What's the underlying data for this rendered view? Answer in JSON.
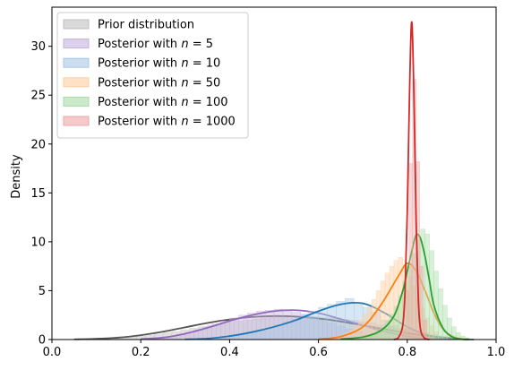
{
  "chart_data": {
    "type": "area",
    "title": "",
    "xlabel": "",
    "ylabel": "Density",
    "xlim": [
      0.0,
      1.0
    ],
    "ylim": [
      0,
      34
    ],
    "x_ticks": [
      "0.0",
      "0.2",
      "0.4",
      "0.6",
      "0.8",
      "1.0"
    ],
    "y_ticks": [
      "0",
      "5",
      "10",
      "15",
      "20",
      "25",
      "30"
    ],
    "grid": false,
    "legend_position": "top-left",
    "series": [
      {
        "legend": {
          "prefix": "Prior distribution",
          "var": "",
          "value": ""
        },
        "color": "#555555",
        "fill": "#bfbfbf",
        "x": [
          0.05,
          0.1,
          0.15,
          0.2,
          0.25,
          0.3,
          0.35,
          0.4,
          0.45,
          0.5,
          0.55,
          0.6,
          0.65,
          0.7,
          0.75,
          0.8,
          0.85,
          0.9,
          0.94
        ],
        "values": [
          0.02,
          0.08,
          0.2,
          0.45,
          0.8,
          1.25,
          1.7,
          2.05,
          2.3,
          2.4,
          2.35,
          2.15,
          1.85,
          1.45,
          1.05,
          0.65,
          0.35,
          0.12,
          0.03
        ],
        "hist": {
          "start": 0.05,
          "width": 0.02,
          "values": [
            0.02,
            0.03,
            0.06,
            0.08,
            0.12,
            0.18,
            0.24,
            0.33,
            0.45,
            0.56,
            0.7,
            0.82,
            1.0,
            1.15,
            1.3,
            1.48,
            1.62,
            1.75,
            1.9,
            2.0,
            2.1,
            2.2,
            2.25,
            2.3,
            2.35,
            2.4,
            2.35,
            2.3,
            2.25,
            2.2,
            2.05,
            1.95,
            1.8,
            1.7,
            1.5,
            1.35,
            1.15,
            1.0,
            0.85,
            0.7,
            0.5,
            0.35,
            0.2,
            0.12,
            0.05
          ]
        }
      },
      {
        "legend": {
          "prefix": "Posterior with ",
          "var": "n",
          "value": " = 5"
        },
        "color": "#9467bd",
        "fill": "#c5b3de",
        "x": [
          0.2,
          0.25,
          0.3,
          0.35,
          0.4,
          0.45,
          0.5,
          0.55,
          0.6,
          0.65,
          0.7,
          0.75,
          0.8,
          0.85,
          0.9
        ],
        "values": [
          0.05,
          0.2,
          0.6,
          1.2,
          1.9,
          2.5,
          2.9,
          3.0,
          2.7,
          2.1,
          1.45,
          0.8,
          0.35,
          0.1,
          0.02
        ],
        "hist": {
          "start": 0.2,
          "width": 0.02,
          "values": [
            0.05,
            0.1,
            0.2,
            0.35,
            0.55,
            0.75,
            1.0,
            1.3,
            1.6,
            1.9,
            2.2,
            2.5,
            2.7,
            2.9,
            3.0,
            3.1,
            3.0,
            2.8,
            2.6,
            2.3,
            2.0,
            1.7,
            1.4,
            1.1,
            0.8,
            0.55,
            0.35,
            0.2,
            0.1,
            0.05,
            0.02,
            0.01,
            0.01,
            0.0,
            0.0
          ]
        }
      },
      {
        "legend": {
          "prefix": "Posterior with ",
          "var": "n",
          "value": " = 10"
        },
        "color": "#1f77b4",
        "fill": "#a6c8e4",
        "x": [
          0.3,
          0.35,
          0.4,
          0.45,
          0.5,
          0.55,
          0.6,
          0.65,
          0.7,
          0.75,
          0.8,
          0.85,
          0.9,
          0.95
        ],
        "values": [
          0.02,
          0.1,
          0.35,
          0.75,
          1.3,
          2.0,
          2.9,
          3.6,
          3.7,
          2.7,
          1.3,
          0.4,
          0.08,
          0.0
        ],
        "hist": {
          "start": 0.3,
          "width": 0.02,
          "values": [
            0.02,
            0.05,
            0.1,
            0.2,
            0.3,
            0.45,
            0.6,
            0.8,
            1.0,
            1.2,
            1.5,
            1.8,
            2.1,
            2.5,
            2.9,
            3.3,
            3.6,
            3.9,
            4.2,
            3.8,
            3.3,
            2.8,
            2.0,
            1.4,
            0.9,
            0.5,
            0.25,
            0.1,
            0.04,
            0.01,
            0.0,
            0.0,
            0.0
          ]
        }
      },
      {
        "legend": {
          "prefix": "Posterior with ",
          "var": "n",
          "value": " = 50"
        },
        "color": "#ff7f0e",
        "fill": "#ffcf9f",
        "x": [
          0.6,
          0.65,
          0.7,
          0.74,
          0.78,
          0.8,
          0.82,
          0.84,
          0.86,
          0.88,
          0.9,
          0.92,
          0.94
        ],
        "values": [
          0.05,
          0.3,
          1.3,
          3.5,
          6.5,
          7.8,
          7.0,
          5.0,
          2.7,
          1.1,
          0.35,
          0.08,
          0.0
        ],
        "hist": {
          "start": 0.6,
          "width": 0.01,
          "values": [
            0.03,
            0.08,
            0.12,
            0.2,
            0.3,
            0.45,
            0.7,
            1.0,
            1.5,
            2.0,
            2.6,
            3.3,
            4.1,
            5.0,
            6.0,
            6.8,
            7.5,
            8.1,
            8.4,
            7.6,
            6.5,
            5.5,
            4.3,
            3.2,
            2.2,
            1.4,
            0.8,
            0.4,
            0.2,
            0.08,
            0.03,
            0.0,
            0.0,
            0.0
          ]
        }
      },
      {
        "legend": {
          "prefix": "Posterior with ",
          "var": "n",
          "value": " = 100"
        },
        "color": "#2ca02c",
        "fill": "#a8dca8",
        "x": [
          0.65,
          0.7,
          0.74,
          0.77,
          0.79,
          0.8,
          0.81,
          0.82,
          0.83,
          0.84,
          0.85,
          0.86,
          0.88,
          0.9,
          0.92,
          0.94
        ],
        "values": [
          0.05,
          0.25,
          0.9,
          2.4,
          5.0,
          7.0,
          9.0,
          10.7,
          10.3,
          8.5,
          6.0,
          3.5,
          1.2,
          0.3,
          0.05,
          0.0
        ],
        "hist": {
          "start": 0.7,
          "width": 0.01,
          "values": [
            0.2,
            0.35,
            0.6,
            0.9,
            1.3,
            1.9,
            2.6,
            3.4,
            4.5,
            6.0,
            7.5,
            8.8,
            10.2,
            11.3,
            10.8,
            9.1,
            7.0,
            5.2,
            3.5,
            2.2,
            1.3,
            0.7,
            0.35,
            0.15,
            0.05
          ]
        }
      },
      {
        "legend": {
          "prefix": "Posterior with ",
          "var": "n",
          "value": " = 1000"
        },
        "color": "#d62728",
        "fill": "#eea7a7",
        "x": [
          0.77,
          0.78,
          0.79,
          0.795,
          0.8,
          0.805,
          0.81,
          0.815,
          0.82,
          0.825,
          0.83,
          0.84,
          0.85
        ],
        "values": [
          0.0,
          0.2,
          1.5,
          5.0,
          13.0,
          25.0,
          32.5,
          25.0,
          12.0,
          4.0,
          1.0,
          0.1,
          0.0
        ],
        "hist": {
          "start": 0.78,
          "width": 0.008,
          "values": [
            0.1,
            1.2,
            5.0,
            18.0,
            26.6,
            18.2,
            7.5,
            2.0,
            0.3
          ]
        }
      }
    ]
  }
}
